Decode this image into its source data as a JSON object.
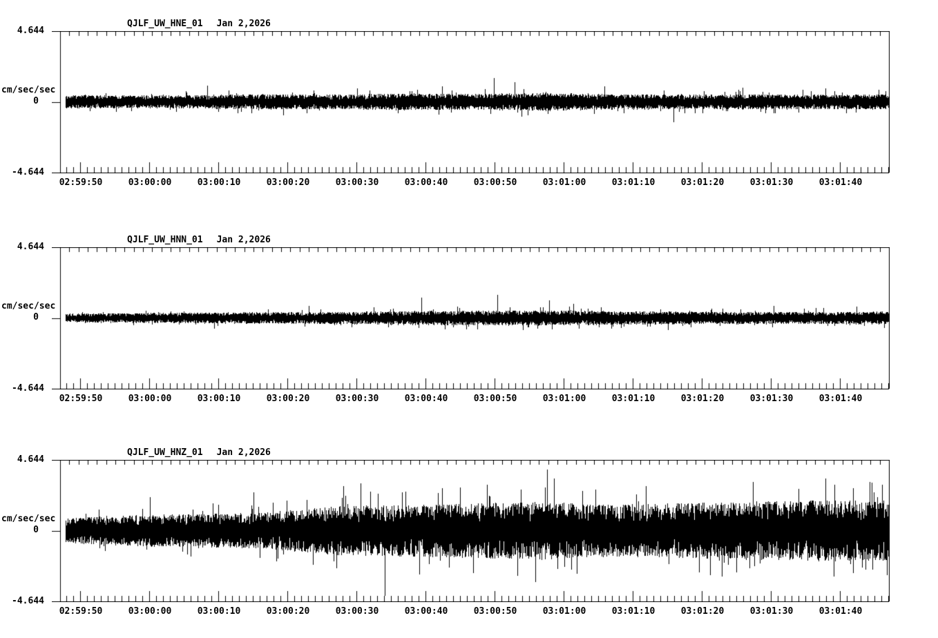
{
  "figure": {
    "background_color": "#ffffff",
    "stroke_color": "#000000"
  },
  "x_axis": {
    "tick_labels": [
      "02:59:50",
      "03:00:00",
      "03:00:10",
      "03:00:20",
      "03:00:30",
      "03:00:40",
      "03:00:50",
      "03:01:00",
      "03:01:10",
      "03:01:20",
      "03:01:30",
      "03:01:40"
    ]
  },
  "chart_data": [
    {
      "type": "line",
      "title": "QJLF_UW_HNE_01  Jan 2,2026",
      "station_channel": "QJLF_UW_HNE_01",
      "date": "Jan 2,2026",
      "ylabel": "cm/sec/sec",
      "ylim": [
        -4.644,
        4.644
      ],
      "y_max_label": "4.644",
      "y_zero_label": "0",
      "y_min_label": "-4.644",
      "x_tick_labels": [
        "02:59:50",
        "03:00:00",
        "03:00:10",
        "03:00:20",
        "03:00:30",
        "03:00:40",
        "03:00:50",
        "03:01:00",
        "03:01:10",
        "03:01:20",
        "03:01:30",
        "03:01:40"
      ],
      "x_window_seconds": 120,
      "x_major_tick_seconds": 10,
      "x_minor_tick_seconds": 1,
      "grid": false,
      "line_color": "#000000",
      "series": [
        {
          "name": "QJLF_UW_HNE_01",
          "representation": "seismic-noise-envelope",
          "envelope_t_seconds": [
            0,
            10,
            20,
            30,
            40,
            50,
            60,
            70,
            80,
            90,
            100,
            110,
            120
          ],
          "envelope_amplitude": [
            0.45,
            0.42,
            0.45,
            0.5,
            0.48,
            0.55,
            0.52,
            0.6,
            0.5,
            0.48,
            0.5,
            0.48,
            0.5
          ],
          "spikes_t_value": [
            [
              21.3,
              1.05
            ],
            [
              32.3,
              -0.9
            ],
            [
              43.0,
              0.9
            ],
            [
              55.3,
              1.0
            ],
            [
              62.8,
              1.55
            ],
            [
              65.8,
              1.3
            ],
            [
              66.8,
              -1.0
            ],
            [
              78.8,
              1.0
            ],
            [
              88.8,
              -1.35
            ],
            [
              98.8,
              0.95
            ],
            [
              110.8,
              0.9
            ],
            [
              118.5,
              0.8
            ]
          ],
          "seed": 11
        }
      ]
    },
    {
      "type": "line",
      "title": "QJLF_UW_HNN_01  Jan 2,2026",
      "station_channel": "QJLF_UW_HNN_01",
      "date": "Jan 2,2026",
      "ylabel": "cm/sec/sec",
      "ylim": [
        -4.644,
        4.644
      ],
      "y_max_label": "4.644",
      "y_zero_label": "0",
      "y_min_label": "-4.644",
      "x_tick_labels": [
        "02:59:50",
        "03:00:00",
        "03:00:10",
        "03:00:20",
        "03:00:30",
        "03:00:40",
        "03:00:50",
        "03:01:00",
        "03:01:10",
        "03:01:20",
        "03:01:30",
        "03:01:40"
      ],
      "x_window_seconds": 120,
      "x_major_tick_seconds": 10,
      "x_minor_tick_seconds": 1,
      "grid": false,
      "line_color": "#000000",
      "series": [
        {
          "name": "QJLF_UW_HNN_01",
          "representation": "seismic-noise-envelope",
          "envelope_t_seconds": [
            0,
            10,
            20,
            30,
            40,
            50,
            60,
            70,
            80,
            90,
            100,
            110,
            120
          ],
          "envelope_amplitude": [
            0.3,
            0.32,
            0.35,
            0.38,
            0.4,
            0.45,
            0.48,
            0.5,
            0.45,
            0.42,
            0.4,
            0.4,
            0.42
          ],
          "spikes_t_value": [
            [
              22.3,
              -0.7
            ],
            [
              36.0,
              0.8
            ],
            [
              52.3,
              1.35
            ],
            [
              63.3,
              1.5
            ],
            [
              70.8,
              1.15
            ],
            [
              74.3,
              0.95
            ],
            [
              88.0,
              -0.8
            ],
            [
              103.3,
              0.8
            ],
            [
              115.3,
              0.75
            ]
          ],
          "seed": 22
        }
      ]
    },
    {
      "type": "line",
      "title": "QJLF_UW_HNZ_01  Jan 2,2026",
      "station_channel": "QJLF_UW_HNZ_01",
      "date": "Jan 2,2026",
      "ylabel": "cm/sec/sec",
      "ylim": [
        -4.644,
        4.644
      ],
      "y_max_label": "4.644",
      "y_zero_label": "0",
      "y_min_label": "-4.644",
      "x_tick_labels": [
        "02:59:50",
        "03:00:00",
        "03:00:10",
        "03:00:20",
        "03:00:30",
        "03:00:40",
        "03:00:50",
        "03:01:00",
        "03:01:10",
        "03:01:20",
        "03:01:30",
        "03:01:40"
      ],
      "x_window_seconds": 120,
      "x_major_tick_seconds": 10,
      "x_minor_tick_seconds": 1,
      "grid": false,
      "line_color": "#000000",
      "series": [
        {
          "name": "QJLF_UW_HNZ_01",
          "representation": "seismic-noise-envelope",
          "envelope_t_seconds": [
            0,
            10,
            20,
            30,
            40,
            50,
            60,
            70,
            80,
            90,
            100,
            110,
            120
          ],
          "envelope_amplitude": [
            0.8,
            1.0,
            1.1,
            1.2,
            1.6,
            1.7,
            1.8,
            1.9,
            1.7,
            1.8,
            1.9,
            2.0,
            2.0
          ],
          "spikes_t_value": [
            [
              13.0,
              2.2
            ],
            [
              28.0,
              2.5
            ],
            [
              41.0,
              2.9
            ],
            [
              43.5,
              3.1
            ],
            [
              47.0,
              -4.3
            ],
            [
              52.0,
              -2.9
            ],
            [
              55.3,
              2.8
            ],
            [
              61.8,
              3.0
            ],
            [
              68.8,
              -3.4
            ],
            [
              70.5,
              4.0
            ],
            [
              71.5,
              3.4
            ],
            [
              84.8,
              2.9
            ],
            [
              95.8,
              -3.0
            ],
            [
              100.3,
              3.2
            ],
            [
              110.8,
              3.4
            ],
            [
              112.0,
              -3.0
            ],
            [
              114.8,
              -2.8
            ],
            [
              119.0,
              3.0
            ]
          ],
          "seed": 33
        }
      ]
    }
  ]
}
